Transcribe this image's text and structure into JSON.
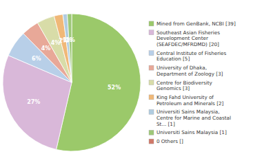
{
  "chart_data": {
    "type": "pie",
    "categories": [
      "Mined from GenBank, NCBI [39]",
      "Southeast Asian Fisheries\nDevelopment Center\n(SEAFDEC/MFRDMD) [20]",
      "Central Institute of Fisheries\nEducation [5]",
      "University of Dhaka,\nDepartment of Zoology [3]",
      "Centre for Biodiversity\nGenomics [3]",
      "King Fahd University of\nPetroleum and Minerals [2]",
      "Universiti Sains Malaysia,\nCentre for Marine and Coastal\nSt... [1]",
      "Universiti Sains Malaysia [1]",
      "0 Others []"
    ],
    "values": [
      52,
      27,
      6,
      4,
      4,
      2,
      1,
      1,
      0
    ],
    "value_labels": [
      "52%",
      "27%",
      "6%",
      "4%",
      "4%",
      "2%",
      "1%",
      "1%",
      null
    ],
    "colors": [
      "#9bc96a",
      "#d9b8d9",
      "#b8cfe8",
      "#e8a898",
      "#d8dca8",
      "#f0b878",
      "#b0cce0",
      "#9ec878",
      "#d07868"
    ],
    "data_labels": true,
    "legend": "right"
  }
}
